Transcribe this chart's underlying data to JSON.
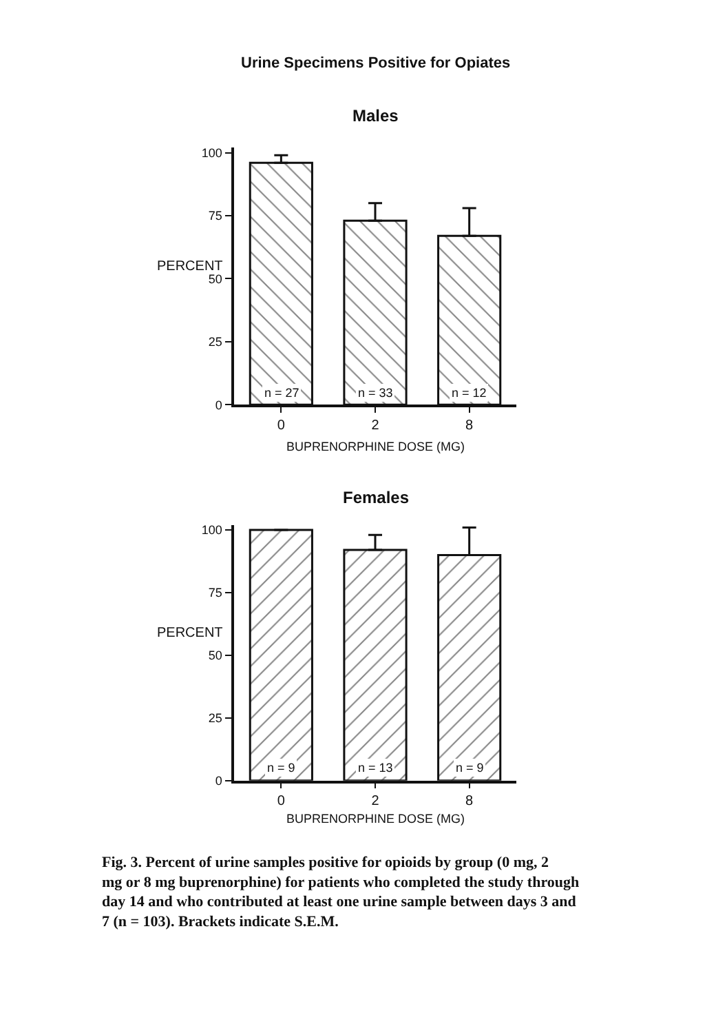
{
  "chart_data": [
    {
      "type": "bar",
      "title": "Urine Specimens Positive for Opiates",
      "subtitle": "Males",
      "xlabel": "BUPRENORPHINE DOSE (MG)",
      "ylabel": "PERCENT",
      "categories": [
        "0",
        "2",
        "8"
      ],
      "values": [
        96,
        73,
        67
      ],
      "errors": [
        [
          96,
          99
        ],
        [
          73,
          80
        ],
        [
          67,
          78
        ]
      ],
      "color": "#111111",
      "ylim": [
        0,
        102
      ],
      "yticks": [
        0,
        25,
        50,
        75,
        100
      ],
      "annotations": [
        {
          "text": "n = 27",
          "x": "0",
          "y": 0
        },
        {
          "text": "n = 33",
          "x": "2",
          "y": 0
        },
        {
          "text": "n = 12",
          "x": "8",
          "y": 0
        }
      ]
    },
    {
      "type": "bar",
      "title": "Females",
      "xlabel": "BUPRENORPHINE DOSE (MG)",
      "ylabel": "PERCENT",
      "categories": [
        "0",
        "2",
        "8"
      ],
      "values": [
        100,
        92,
        90
      ],
      "errors": [
        null,
        [
          92,
          98
        ],
        [
          90,
          101
        ]
      ],
      "color": "#111111",
      "ylim": [
        0,
        102
      ],
      "yticks": [
        0,
        25,
        50,
        75,
        100
      ],
      "annotations": [
        {
          "text": "n = 9",
          "x": "0",
          "y": 0
        },
        {
          "text": "n = 13",
          "x": "2",
          "y": 0
        },
        {
          "text": "n = 9",
          "x": "8",
          "y": 0
        },
        "Fig. 3. Percent of urine samples positive for opioids by group (0 mg, 2 mg or 8 mg buprenorphine) for patients who completed the study through day 14 and who contributed at least one urine sample between days 3 and 7 (n = 103). Brackets indicate S.E.M."
      ]
    }
  ]
}
